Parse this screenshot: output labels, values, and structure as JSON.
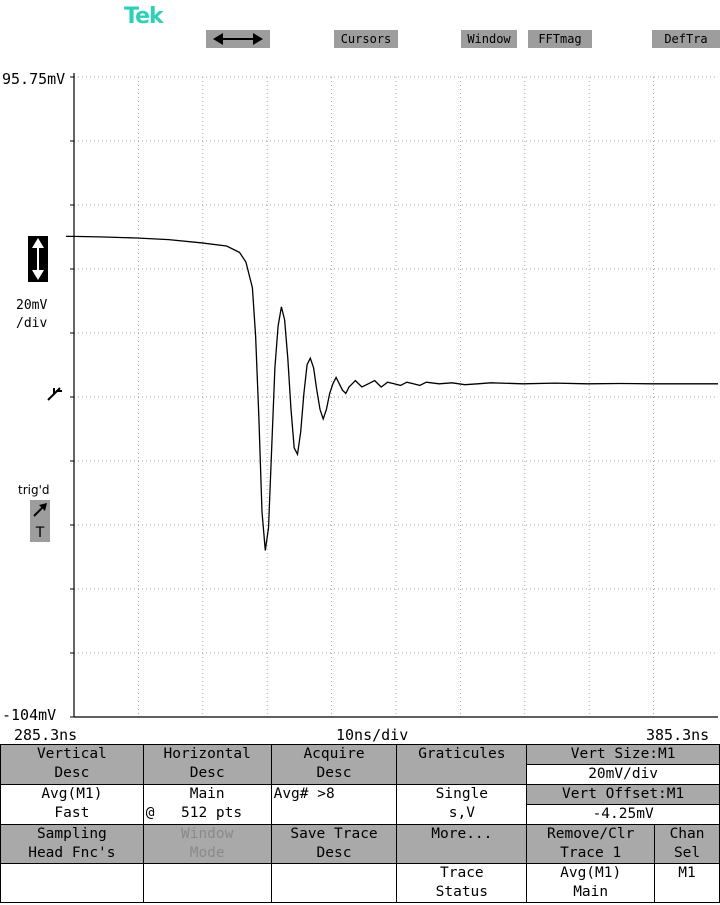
{
  "brand": {
    "logo": "Tek"
  },
  "top_menu": {
    "arrows_icon": "horizontal-double-arrow",
    "cursors": "Cursors",
    "window": "Window",
    "fftmag": "FFTmag",
    "deftra": "DefTra"
  },
  "display": {
    "y_top_label": "95.75mV",
    "y_bottom_label": "-104mV",
    "scale_label_1": "20mV",
    "scale_label_2": "/div",
    "trig_label": "trig'd",
    "trig_letter": "T",
    "x_left_label": "285.3ns",
    "x_center_label": "10ns/div",
    "x_right_label": "385.3ns",
    "colors": {
      "logo": "#2fd0b8",
      "button": "#9d9d9d",
      "trace": "#000000"
    }
  },
  "chart_data": {
    "type": "line",
    "title": "",
    "xlabel": "10ns/div",
    "ylabel": "20mV/div",
    "xlim": [
      285.3,
      385.3
    ],
    "ylim": [
      -104,
      95.75
    ],
    "grid": true,
    "series": [
      {
        "values_x": [
          285.3,
          290,
          295,
          300,
          305,
          309,
          311,
          312,
          313,
          313.5,
          314,
          314.5,
          315,
          315.5,
          316,
          316.5,
          317,
          317.5,
          318,
          318.5,
          319,
          319.5,
          320,
          320.5,
          321,
          321.5,
          322,
          322.5,
          323,
          323.5,
          324,
          324.5,
          325,
          325.5,
          326,
          326.5,
          327,
          327.5,
          328,
          328.5,
          329,
          330,
          331,
          332,
          333,
          334,
          335,
          336,
          337,
          338,
          339,
          340,
          342,
          344,
          346,
          348,
          350,
          355,
          360,
          365,
          370,
          375,
          380,
          385.3
        ],
        "values_y": [
          46,
          45.8,
          45.5,
          45,
          44,
          43,
          41,
          38,
          30,
          15,
          -10,
          -40,
          -52,
          -45,
          -20,
          5,
          18,
          24,
          20,
          8,
          -8,
          -20,
          -22,
          -15,
          -3,
          6,
          8,
          5,
          -2,
          -8,
          -11,
          -8,
          -3,
          0,
          2,
          0,
          -2,
          -3,
          -1,
          0,
          1,
          -1,
          0,
          1,
          -1,
          0.5,
          0,
          -0.5,
          0.5,
          0,
          -0.5,
          0.5,
          0,
          0.3,
          -0.3,
          0,
          0.3,
          0,
          0.2,
          0,
          0.1,
          0,
          0,
          0
        ]
      }
    ]
  },
  "menu": {
    "vertical_desc_1": "Vertical",
    "vertical_desc_2": "Desc",
    "horizontal_desc_1": "Horizontal",
    "horizontal_desc_2": "Desc",
    "acquire_desc_1": "Acquire",
    "acquire_desc_2": "Desc",
    "graticules": "Graticules",
    "vert_size": "Vert Size:M1",
    "vert_size_val": "20mV/div",
    "avg_m1": "Avg(M1)",
    "fast": "Fast",
    "main": "Main",
    "at": "@",
    "pts": "512 pts",
    "avg_num": "Avg# >8",
    "single_1": "Single",
    "single_2": "s,V",
    "vert_offset": "Vert Offset:M1",
    "vert_offset_val": "-4.25mV",
    "sampling_1": "Sampling",
    "sampling_2": "Head Fnc's",
    "window_mode_1": "Window",
    "window_mode_2": "Mode",
    "save_trace_1": "Save Trace",
    "save_trace_2": "Desc",
    "more": "More...",
    "remove_1": "Remove/Clr",
    "remove_2": "Trace 1",
    "chan_1": "Chan",
    "chan_2": "Sel",
    "trace_status_1": "Trace",
    "trace_status_2": "Status",
    "remove_avg": "Avg(M1)",
    "remove_main": "Main",
    "chan_m1": "M1"
  }
}
